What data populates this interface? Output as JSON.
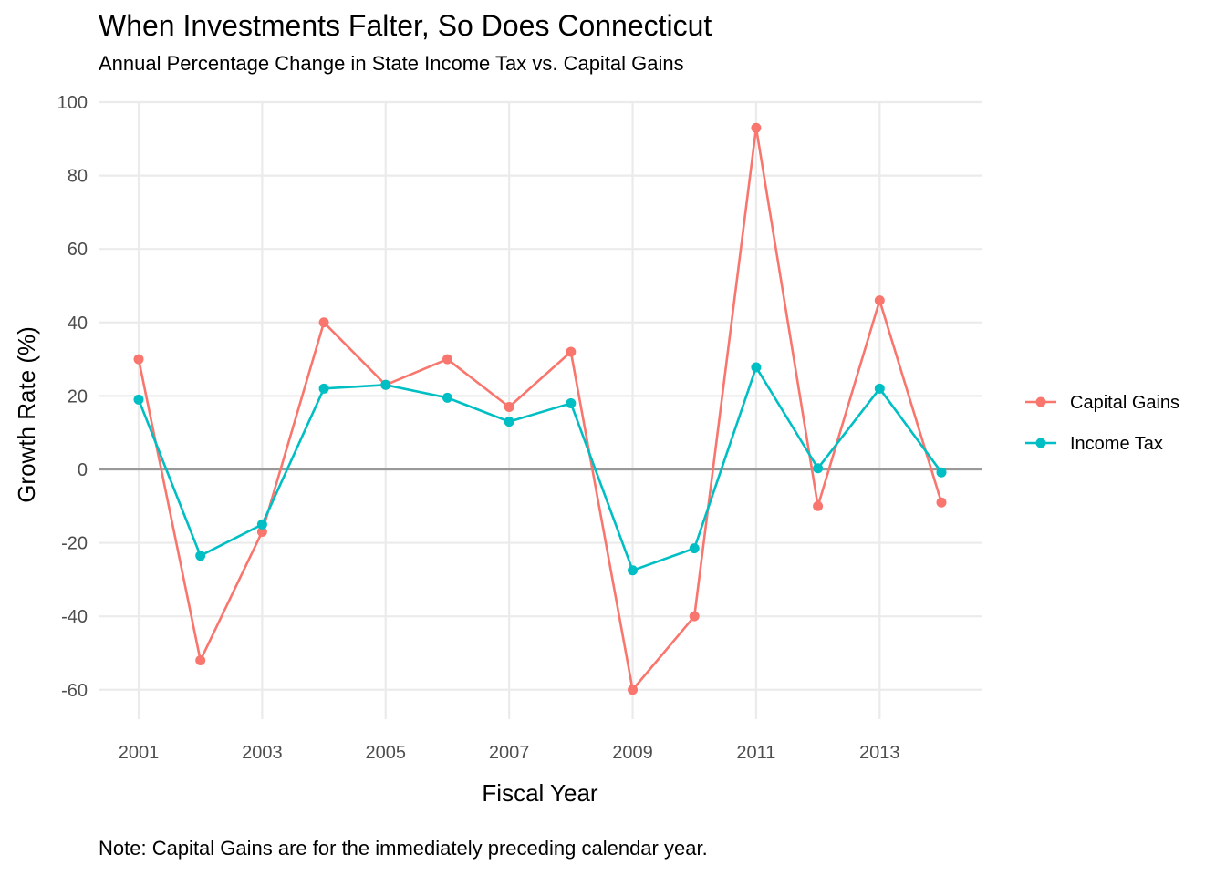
{
  "chart_data": {
    "type": "line",
    "title": "When Investments Falter, So Does Connecticut",
    "subtitle": "Annual Percentage Change in State Income Tax vs. Capital Gains",
    "xlabel": "Fiscal Year",
    "ylabel": "Growth Rate (%)",
    "caption": "Note: Capital Gains are for the immediately preceding calendar year.",
    "x": [
      2001,
      2002,
      2003,
      2004,
      2005,
      2006,
      2007,
      2008,
      2009,
      2010,
      2011,
      2012,
      2013,
      2014
    ],
    "x_ticks": [
      2001,
      2003,
      2005,
      2007,
      2009,
      2011,
      2013
    ],
    "y_ticks": [
      -60,
      -40,
      -20,
      0,
      20,
      40,
      60,
      80,
      100
    ],
    "xlim": [
      2000.35,
      2014.65
    ],
    "ylim": [
      -68,
      100
    ],
    "grid": true,
    "reference_line_y": 0,
    "legend_position": "right",
    "series": [
      {
        "name": "Capital Gains",
        "color": "#f8766d",
        "values": [
          30,
          -52,
          -17,
          40,
          23,
          30,
          17,
          32,
          -60,
          -40,
          93,
          -10,
          46,
          -9
        ]
      },
      {
        "name": "Income Tax",
        "color": "#00bfc4",
        "values": [
          19,
          -23.5,
          -15,
          22,
          23,
          19.5,
          13,
          18,
          -27.5,
          -21.5,
          27.8,
          0.3,
          22,
          -0.8
        ]
      }
    ]
  }
}
